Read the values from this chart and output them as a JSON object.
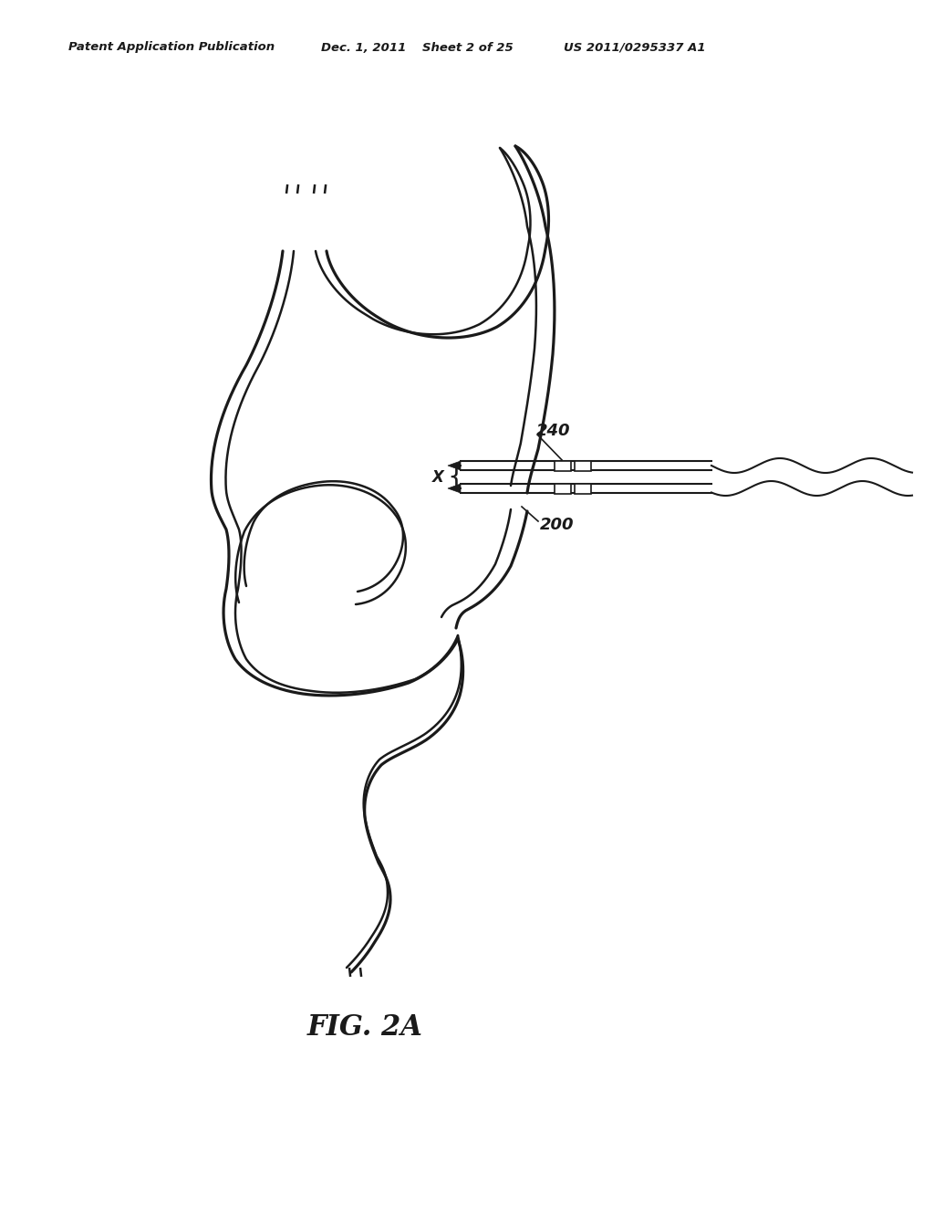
{
  "bg": "#ffffff",
  "lc": "#1a1a1a",
  "lw_outer": 2.3,
  "lw_inner": 1.8,
  "header_left": "Patent Application Publication",
  "header_mid1": "Dec. 1, 2011",
  "header_mid2": "Sheet 2 of 25",
  "header_right": "US 2011/0295337 A1",
  "fig_label": "FIG. 2A",
  "label_240": "240",
  "label_200": "200",
  "label_X": "X"
}
